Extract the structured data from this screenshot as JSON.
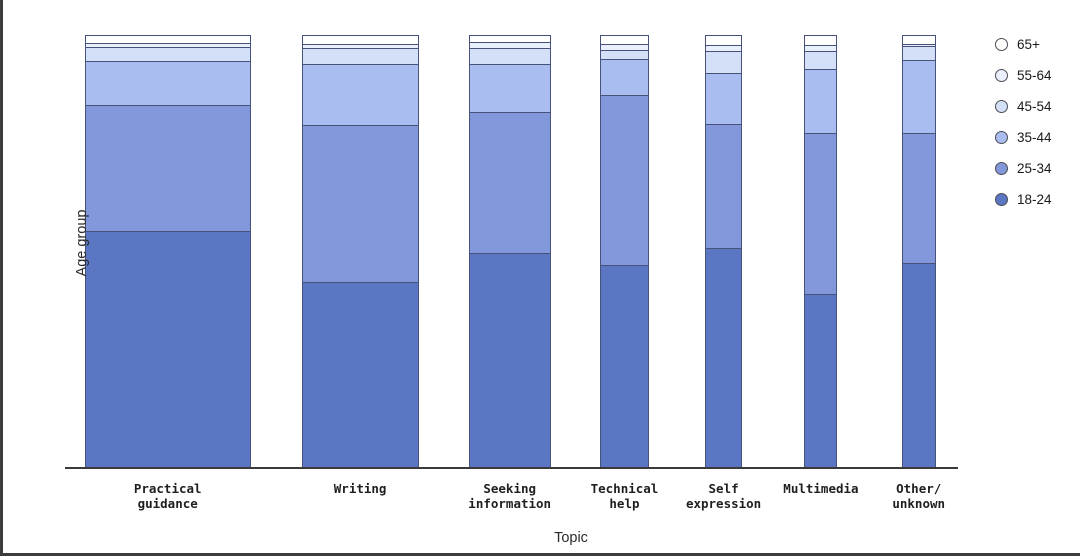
{
  "axis": {
    "x_title": "Topic",
    "y_title": "Age group"
  },
  "chart_data": {
    "type": "bar",
    "variant": "stacked-percentage-variable-width",
    "title": "",
    "xlabel": "Topic",
    "ylabel": "Age group",
    "grid": false,
    "legend_position": "top-right",
    "stack_order_top_to_bottom": [
      "65+",
      "55-64",
      "45-54",
      "35-44",
      "25-34",
      "18-24"
    ],
    "colors": {
      "65+": "#ffffff",
      "55-64": "#e9effc",
      "45-54": "#d3e0f7",
      "35-44": "#aabdf0",
      "25-34": "#8298da",
      "18-24": "#5b77c4"
    },
    "legend": [
      {
        "label": "65+",
        "color": "#ffffff"
      },
      {
        "label": "55-64",
        "color": "#e9effc"
      },
      {
        "label": "45-54",
        "color": "#d3e0f7"
      },
      {
        "label": "35-44",
        "color": "#aabdf0"
      },
      {
        "label": "25-34",
        "color": "#8298da"
      },
      {
        "label": "18-24",
        "color": "#5b77c4"
      }
    ],
    "categories": [
      {
        "label_lines": [
          "Practical",
          "guidance"
        ],
        "left_pct": 2.2,
        "width_pct": 18.6,
        "values": {
          "18-24": 54.8,
          "25-34": 29.1,
          "35-44": 10.4,
          "45-54": 3.2,
          "55-64": 0.8,
          "65+": 1.7
        }
      },
      {
        "label_lines": [
          "Writing"
        ],
        "left_pct": 26.5,
        "width_pct": 13.1,
        "values": {
          "18-24": 43.0,
          "25-34": 36.3,
          "35-44": 14.1,
          "45-54": 3.7,
          "55-64": 1.0,
          "65+": 1.9
        }
      },
      {
        "label_lines": [
          "Seeking",
          "information"
        ],
        "left_pct": 45.2,
        "width_pct": 9.2,
        "values": {
          "18-24": 49.7,
          "25-34": 32.6,
          "35-44": 11.1,
          "45-54": 3.7,
          "55-64": 1.6,
          "65+": 1.3
        }
      },
      {
        "label_lines": [
          "Technical",
          "help"
        ],
        "left_pct": 59.9,
        "width_pct": 5.5,
        "values": {
          "18-24": 46.9,
          "25-34": 39.3,
          "35-44": 8.5,
          "45-54": 2.1,
          "55-64": 1.4,
          "65+": 1.8
        }
      },
      {
        "label_lines": [
          "Self",
          "expression"
        ],
        "left_pct": 71.7,
        "width_pct": 4.1,
        "values": {
          "18-24": 50.8,
          "25-34": 28.7,
          "35-44": 11.8,
          "45-54": 5.3,
          "55-64": 1.2,
          "65+": 2.2
        }
      },
      {
        "label_lines": [
          "Multimedia"
        ],
        "left_pct": 82.8,
        "width_pct": 3.7,
        "values": {
          "18-24": 40.2,
          "25-34": 37.2,
          "35-44": 15.0,
          "45-54": 4.2,
          "55-64": 1.2,
          "65+": 2.2
        }
      },
      {
        "label_lines": [
          "Other/",
          "unknown"
        ],
        "left_pct": 93.7,
        "width_pct": 3.8,
        "values": {
          "18-24": 47.3,
          "25-34": 30.2,
          "35-44": 16.9,
          "45-54": 3.2,
          "55-64": 0.5,
          "65+": 1.9
        }
      }
    ]
  }
}
